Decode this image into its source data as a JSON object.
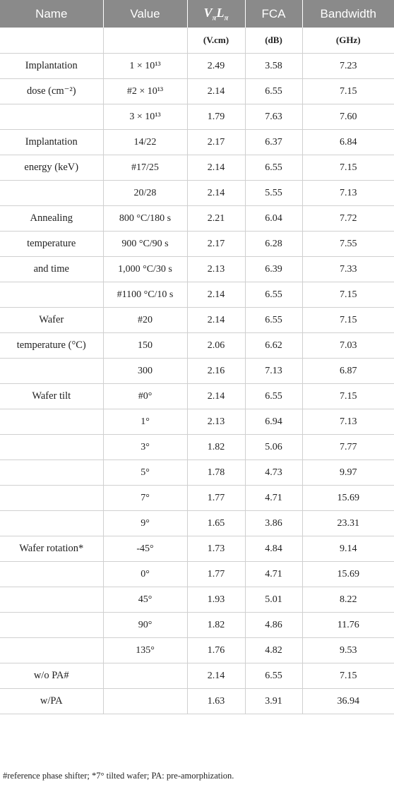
{
  "headers": {
    "name": "Name",
    "value": "Value",
    "vl_main": "V",
    "vl_sub1": "π",
    "vl_mid": "L",
    "vl_sub2": "π",
    "fca": "FCA",
    "bandwidth": "Bandwidth"
  },
  "units": {
    "name": "",
    "value": "",
    "vl": "(V.cm)",
    "fca": "(dB)",
    "bandwidth": "(GHz)"
  },
  "rows": [
    {
      "name": "Implantation",
      "value": "1 × 10¹³",
      "vl": "2.49",
      "fca": "3.58",
      "bw": "7.23"
    },
    {
      "name": "dose (cm⁻²)",
      "value": "#2 × 10¹³",
      "vl": "2.14",
      "fca": "6.55",
      "bw": "7.15"
    },
    {
      "name": "",
      "value": "3 × 10¹³",
      "vl": "1.79",
      "fca": "7.63",
      "bw": "7.60"
    },
    {
      "name": "Implantation",
      "value": "14/22",
      "vl": "2.17",
      "fca": "6.37",
      "bw": "6.84"
    },
    {
      "name": "energy (keV)",
      "value": "#17/25",
      "vl": "2.14",
      "fca": "6.55",
      "bw": "7.15"
    },
    {
      "name": "",
      "value": "20/28",
      "vl": "2.14",
      "fca": "5.55",
      "bw": "7.13"
    },
    {
      "name": "Annealing",
      "value": "800 °C/180 s",
      "vl": "2.21",
      "fca": "6.04",
      "bw": "7.72"
    },
    {
      "name": "temperature",
      "value": "900 °C/90 s",
      "vl": "2.17",
      "fca": "6.28",
      "bw": "7.55"
    },
    {
      "name": "and time",
      "value": "1,000 °C/30 s",
      "vl": "2.13",
      "fca": "6.39",
      "bw": "7.33"
    },
    {
      "name": "",
      "value": "#1100 °C/10 s",
      "vl": "2.14",
      "fca": "6.55",
      "bw": "7.15"
    },
    {
      "name": "Wafer",
      "value": "#20",
      "vl": "2.14",
      "fca": "6.55",
      "bw": "7.15"
    },
    {
      "name": "temperature (°C)",
      "value": "150",
      "vl": "2.06",
      "fca": "6.62",
      "bw": "7.03"
    },
    {
      "name": "",
      "value": "300",
      "vl": "2.16",
      "fca": "7.13",
      "bw": "6.87"
    },
    {
      "name": "Wafer tilt",
      "value": "#0°",
      "vl": "2.14",
      "fca": "6.55",
      "bw": "7.15"
    },
    {
      "name": "",
      "value": "1°",
      "vl": "2.13",
      "fca": "6.94",
      "bw": "7.13"
    },
    {
      "name": "",
      "value": "3°",
      "vl": "1.82",
      "fca": "5.06",
      "bw": "7.77"
    },
    {
      "name": "",
      "value": "5°",
      "vl": "1.78",
      "fca": "4.73",
      "bw": "9.97"
    },
    {
      "name": "",
      "value": "7°",
      "vl": "1.77",
      "fca": "4.71",
      "bw": "15.69"
    },
    {
      "name": "",
      "value": "9°",
      "vl": "1.65",
      "fca": "3.86",
      "bw": "23.31"
    },
    {
      "name": "Wafer rotation*",
      "value": "-45°",
      "vl": "1.73",
      "fca": "4.84",
      "bw": "9.14"
    },
    {
      "name": "",
      "value": "0°",
      "vl": "1.77",
      "fca": "4.71",
      "bw": "15.69"
    },
    {
      "name": "",
      "value": "45°",
      "vl": "1.93",
      "fca": "5.01",
      "bw": "8.22"
    },
    {
      "name": "",
      "value": "90°",
      "vl": "1.82",
      "fca": "4.86",
      "bw": "11.76"
    },
    {
      "name": "",
      "value": "135°",
      "vl": "1.76",
      "fca": "4.82",
      "bw": "9.53"
    },
    {
      "name": "w/o PA#",
      "value": "",
      "vl": "2.14",
      "fca": "6.55",
      "bw": "7.15"
    },
    {
      "name": "w/PA",
      "value": "",
      "vl": "1.63",
      "fca": "3.91",
      "bw": "36.94"
    }
  ],
  "footnote": "#reference phase shifter; *7° tilted wafer; PA: pre-amorphization.",
  "colors": {
    "header_bg": "#8a8a8a",
    "header_text": "#ffffff",
    "grid": "#d0d0d0",
    "text": "#222222"
  }
}
